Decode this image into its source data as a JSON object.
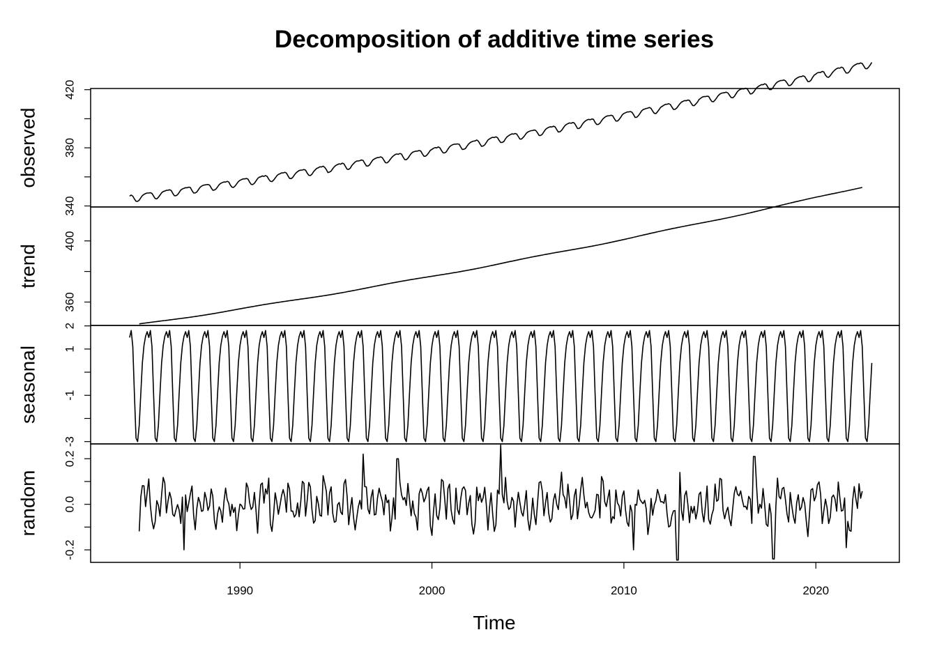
{
  "chart_data": {
    "type": "line",
    "title": "Decomposition of additive time series",
    "xlabel": "Time",
    "xlim": [
      1982.22,
      2024.35
    ],
    "xticks": [
      1990,
      2000,
      2010,
      2020
    ],
    "xtick_labels": [
      "1990",
      "2000",
      "2010",
      "2020"
    ],
    "start": 1984.25,
    "frequency": 12,
    "panels": [
      {
        "name": "observed",
        "ylabel": "observed",
        "ylim": [
          339.3,
          420.8
        ],
        "yticks": [
          340,
          360,
          380,
          400,
          420
        ],
        "ytick_labels": [
          "340",
          "",
          "380",
          "",
          "420"
        ],
        "range": [
          1984.25,
          2022.95
        ],
        "base": 345.4,
        "slope": 1.84,
        "curve": 0.0145,
        "seasonal_amp": 2.5,
        "noise": 0.35
      },
      {
        "name": "trend",
        "ylabel": "trend",
        "ylim": [
          344.7,
          422.2
        ],
        "yticks": [
          360,
          380,
          400
        ],
        "ytick_labels": [
          "360",
          "",
          "400"
        ],
        "range": [
          1984.75,
          2022.45
        ],
        "base": 345.4,
        "slope": 1.84,
        "curve": 0.0145
      },
      {
        "name": "seasonal",
        "ylabel": "seasonal",
        "ylim": [
          -3.1,
          2.02
        ],
        "yticks": [
          -3,
          -2,
          -1,
          0,
          1,
          2
        ],
        "ytick_labels": [
          "-3",
          "",
          "-1",
          "",
          "1",
          "2"
        ],
        "range": [
          1984.25,
          2022.95
        ],
        "months": [
          1.5,
          1.8,
          1.1,
          -0.95,
          -2.85,
          -3.0,
          -2.3,
          -0.9,
          0.4,
          1.15,
          1.55,
          1.75
        ]
      },
      {
        "name": "random",
        "ylabel": "random",
        "ylim": [
          -0.255,
          0.265
        ],
        "yticks": [
          -0.2,
          -0.1,
          0.0,
          0.1,
          0.2
        ],
        "ytick_labels": [
          "-0.2",
          "",
          "0.0",
          "",
          "0.2"
        ],
        "range": [
          1984.75,
          2022.45
        ],
        "amp": 0.085,
        "spikes": [
          {
            "x": 1987.1,
            "y": -0.2
          },
          {
            "x": 1996.4,
            "y": 0.22
          },
          {
            "x": 1998.2,
            "y": 0.2
          },
          {
            "x": 2003.6,
            "y": 0.265
          },
          {
            "x": 2010.5,
            "y": -0.2
          },
          {
            "x": 2012.8,
            "y": -0.25
          },
          {
            "x": 2016.8,
            "y": 0.21
          },
          {
            "x": 2017.8,
            "y": -0.24
          },
          {
            "x": 2021.6,
            "y": -0.19
          }
        ]
      }
    ]
  }
}
